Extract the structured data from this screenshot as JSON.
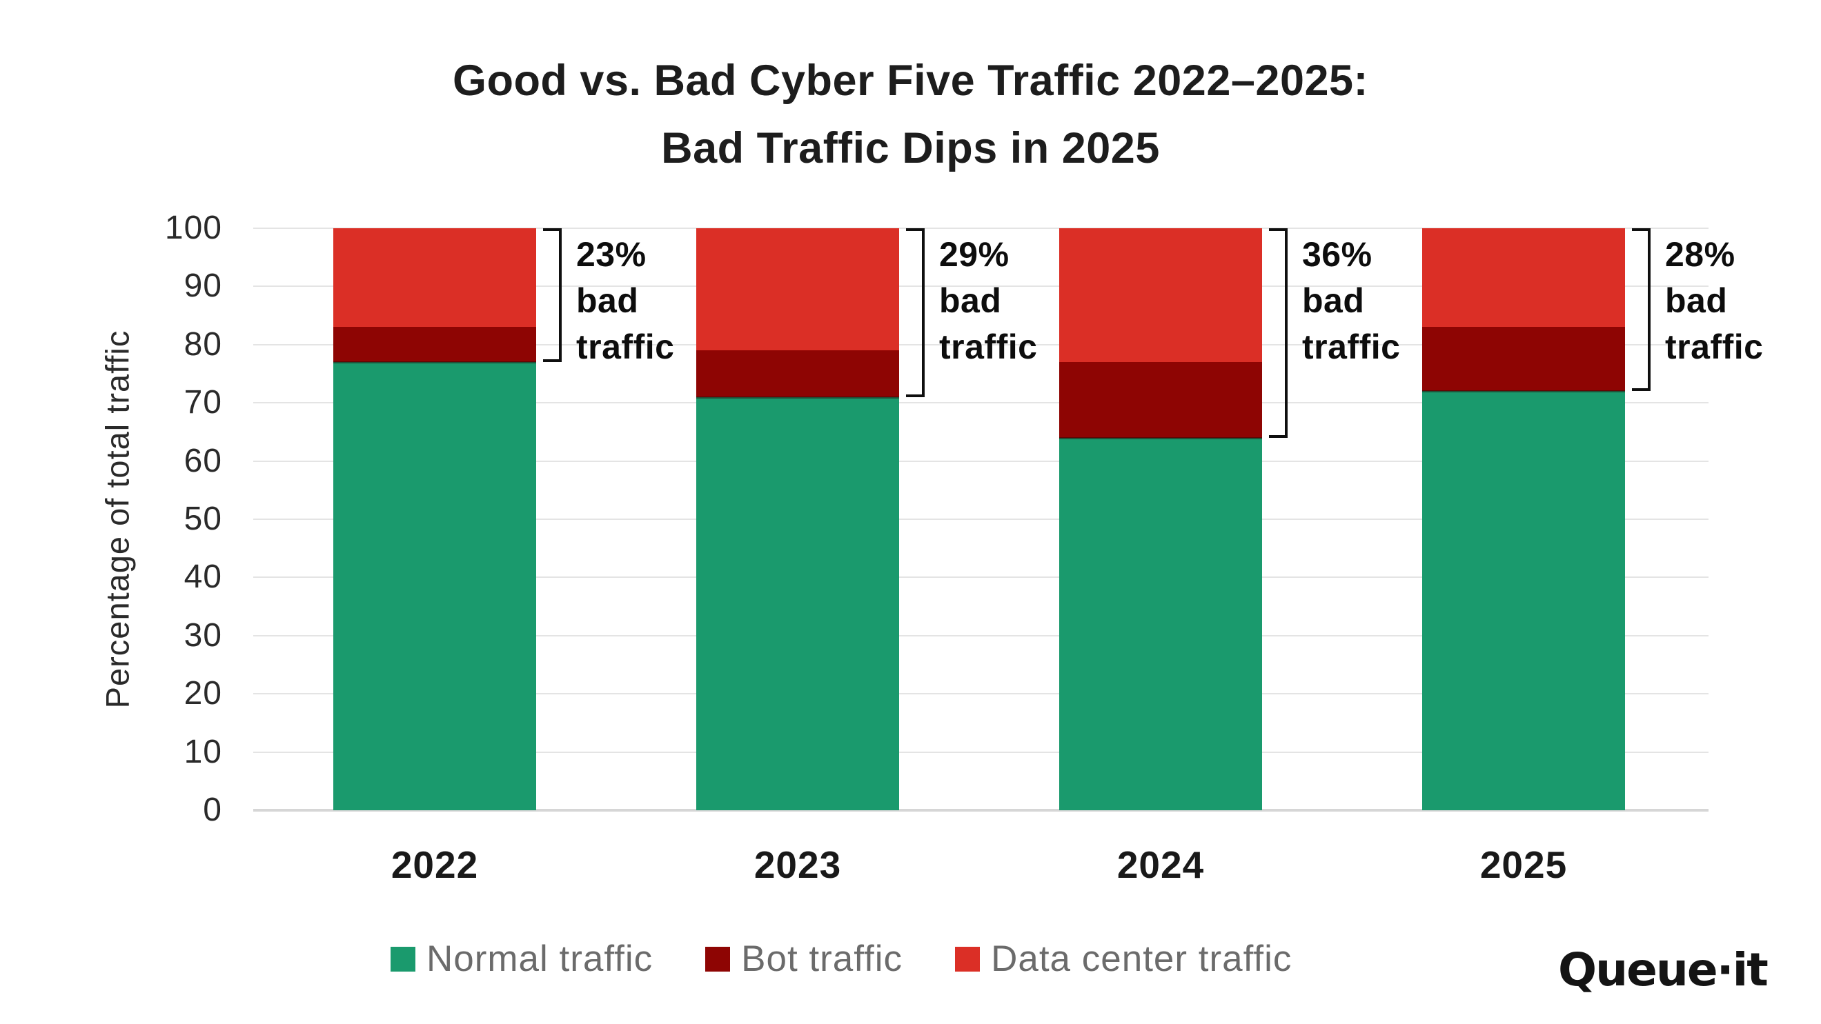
{
  "title": {
    "line1": "Good vs. Bad Cyber Five Traffic 2022–2025:",
    "line2": "Bad Traffic Dips in 2025"
  },
  "y_axis": {
    "title": "Percentage of total traffic",
    "ticks": [
      "0",
      "10",
      "20",
      "30",
      "40",
      "50",
      "60",
      "70",
      "80",
      "90",
      "100"
    ]
  },
  "x_axis": {
    "categories": [
      "2022",
      "2023",
      "2024",
      "2025"
    ]
  },
  "logo": {
    "text": "Queue·it"
  },
  "colors": {
    "normal_traffic": "#1a9a6d",
    "bot_traffic": "#8e0503",
    "data_center_traffic": "#db2f26",
    "gridline": "#e4e4e4",
    "baseline": "#d6d6d6",
    "annotation_text": "#0d0d0d",
    "title_text": "#1d1d1d",
    "axis_text": "#2a2a2a",
    "legend_text": "#6b6b6b"
  },
  "chart_data": {
    "type": "bar",
    "stacked": true,
    "title": "Good vs. Bad Cyber Five Traffic 2022–2025: Bad Traffic Dips in 2025",
    "xlabel": "",
    "ylabel": "Percentage of total traffic",
    "ylim": [
      0,
      100
    ],
    "grid": true,
    "legend_position": "bottom",
    "categories": [
      "2022",
      "2023",
      "2024",
      "2025"
    ],
    "series": [
      {
        "name": "Normal traffic",
        "color": "#1a9a6d",
        "values": [
          77,
          71,
          64,
          72
        ]
      },
      {
        "name": "Bot traffic",
        "color": "#8e0503",
        "values": [
          6,
          8,
          13,
          11
        ]
      },
      {
        "name": "Data center traffic",
        "color": "#db2f26",
        "values": [
          17,
          21,
          23,
          17
        ]
      }
    ],
    "bad_traffic_totals": [
      23,
      29,
      36,
      28
    ],
    "annotations": [
      {
        "lines": [
          "23%",
          "bad",
          "traffic"
        ]
      },
      {
        "lines": [
          "29%",
          "bad",
          "traffic"
        ]
      },
      {
        "lines": [
          "36%",
          "bad",
          "traffic"
        ]
      },
      {
        "lines": [
          "28%",
          "bad",
          "traffic"
        ]
      }
    ]
  }
}
